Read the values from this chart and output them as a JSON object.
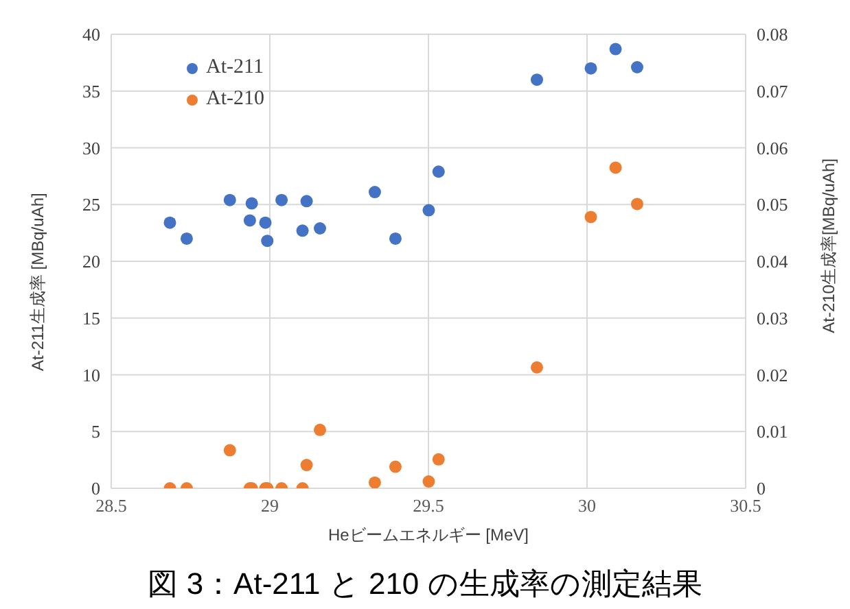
{
  "chart_data": {
    "type": "scatter",
    "xlabel": "Heビームエネルギー [MeV]",
    "ylabel": "At-211生成率 [MBq/uAh]",
    "y2label": "At-210生成率[MBq/uAh]",
    "annotations": [
      "図 3：At-211 と 210 の生成率の測定結果"
    ],
    "x": [
      28.685,
      28.738,
      28.874,
      28.937,
      28.943,
      28.986,
      28.992,
      29.037,
      29.103,
      29.116,
      29.158,
      29.331,
      29.396,
      29.501,
      29.532,
      29.842,
      30.012,
      30.09,
      30.158
    ],
    "series": [
      {
        "name": "At-211",
        "color": "#4472c4",
        "values": [
          23.4,
          22.0,
          25.4,
          23.6,
          25.1,
          23.4,
          21.8,
          25.4,
          22.7,
          25.3,
          22.9,
          26.1,
          22.0,
          24.5,
          27.9,
          36.0,
          37.0,
          38.7,
          37.1
        ]
      },
      {
        "name": "At-210",
        "color": "#ed7d31",
        "axis": "y2",
        "values": [
          0,
          0,
          0.0067,
          0,
          0,
          0,
          0,
          0,
          0,
          0.0041,
          0.0103,
          0.001,
          0.0038,
          0.0012,
          0.0051,
          0.0213,
          0.0478,
          0.0565,
          0.0501
        ]
      }
    ],
    "xlim": [
      28.5,
      30.5
    ],
    "xticks": [
      28.5,
      29,
      29.5,
      30,
      30.5
    ],
    "ylim": [
      0,
      40
    ],
    "yticks": [
      0,
      5,
      10,
      15,
      20,
      25,
      30,
      35,
      40
    ],
    "y2lim": [
      0,
      0.08
    ],
    "y2ticks": [
      0,
      0.01,
      0.02,
      0.03,
      0.04,
      0.05,
      0.06,
      0.07,
      0.08
    ],
    "grid": true,
    "legend": "top left",
    "marker": "circle"
  }
}
